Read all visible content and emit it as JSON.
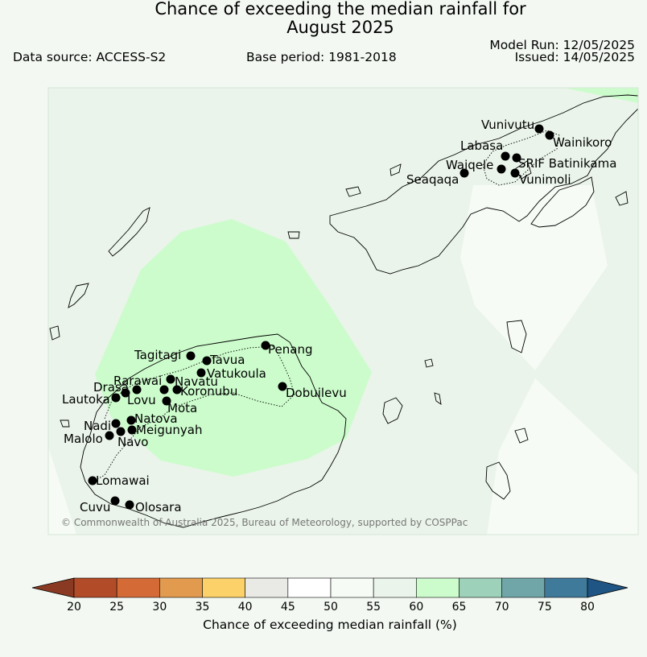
{
  "header": {
    "title_line1": "Chance of exceeding the median rainfall for",
    "title_line2": "August 2025",
    "data_source": "Data source: ACCESS-S2",
    "base_period": "Base period: 1981-2018",
    "model_run": "Model Run: 12/05/2025",
    "issued": "Issued: 14/05/2025"
  },
  "map": {
    "copyright": "© Commonwealth of Australia 2025, Bureau of Meteorology, supported by COSPPac",
    "stations": [
      {
        "name": "Vunivutu"
      },
      {
        "name": "Wainikoro"
      },
      {
        "name": "Labasa"
      },
      {
        "name": "Waiqele"
      },
      {
        "name": "SRIF Batinikama"
      },
      {
        "name": "Seaqaqa"
      },
      {
        "name": "Vunimoli"
      },
      {
        "name": "Penang"
      },
      {
        "name": "Tagitagi"
      },
      {
        "name": "Tavua"
      },
      {
        "name": "Vatukoula"
      },
      {
        "name": "Rarawai"
      },
      {
        "name": "Navatu"
      },
      {
        "name": "Drasa"
      },
      {
        "name": "Koronubu"
      },
      {
        "name": "Lautoka"
      },
      {
        "name": "Lovu"
      },
      {
        "name": "Dobuilevu"
      },
      {
        "name": "Mota"
      },
      {
        "name": "Natova"
      },
      {
        "name": "Nadi"
      },
      {
        "name": "Meigunyah"
      },
      {
        "name": "Malolo"
      },
      {
        "name": "Navo"
      },
      {
        "name": "Lomawai"
      },
      {
        "name": "Cuvu"
      },
      {
        "name": "Olosara"
      }
    ]
  },
  "colorbar": {
    "label": "Chance of exceeding median rainfall (%)",
    "ticks": [
      "20",
      "25",
      "30",
      "35",
      "40",
      "45",
      "50",
      "55",
      "60",
      "65",
      "70",
      "75",
      "80"
    ],
    "colors": [
      "#8a3a22",
      "#b24b28",
      "#d46a36",
      "#e29a4e",
      "#fdd16a",
      "#e9eae6",
      "#ffffff",
      "#f6fbf5",
      "#eaf4ea",
      "#ccfccc",
      "#9dd1b9",
      "#70a6a8",
      "#3f7a9a",
      "#1e5584"
    ]
  }
}
